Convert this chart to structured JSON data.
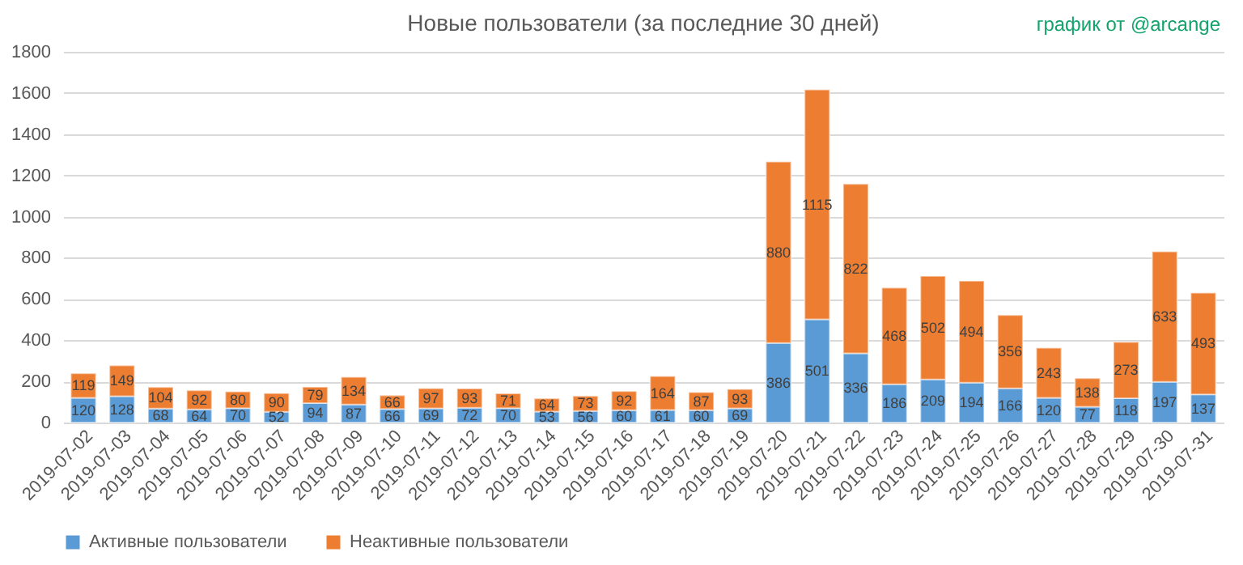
{
  "chart_data": {
    "type": "bar",
    "title": "Новые пользователи (за последние 30 дней)",
    "annotations": [
      "график от @arcange"
    ],
    "categories": [
      "2019-07-02",
      "2019-07-03",
      "2019-07-04",
      "2019-07-05",
      "2019-07-06",
      "2019-07-07",
      "2019-07-08",
      "2019-07-09",
      "2019-07-10",
      "2019-07-11",
      "2019-07-12",
      "2019-07-13",
      "2019-07-14",
      "2019-07-15",
      "2019-07-16",
      "2019-07-17",
      "2019-07-18",
      "2019-07-19",
      "2019-07-20",
      "2019-07-21",
      "2019-07-22",
      "2019-07-23",
      "2019-07-24",
      "2019-07-25",
      "2019-07-26",
      "2019-07-27",
      "2019-07-28",
      "2019-07-29",
      "2019-07-30",
      "2019-07-31"
    ],
    "series": [
      {
        "name": "Активные пользователи",
        "color": "#5b9bd5",
        "values": [
          120,
          128,
          68,
          64,
          70,
          52,
          94,
          87,
          66,
          69,
          72,
          70,
          53,
          56,
          60,
          61,
          60,
          69,
          386,
          501,
          336,
          186,
          209,
          194,
          166,
          120,
          77,
          118,
          197,
          137
        ]
      },
      {
        "name": "Неактивные пользователи",
        "color": "#ed7d31",
        "values": [
          119,
          149,
          104,
          92,
          80,
          90,
          79,
          134,
          66,
          97,
          93,
          71,
          64,
          73,
          92,
          164,
          87,
          93,
          880,
          1115,
          822,
          468,
          502,
          494,
          356,
          243,
          138,
          273,
          633,
          493
        ]
      }
    ],
    "stacked": true,
    "data_labels": true,
    "ylim": [
      0,
      1800
    ],
    "yticks": [
      0,
      200,
      400,
      600,
      800,
      1000,
      1200,
      1400,
      1600,
      1800
    ],
    "grid": "y",
    "legend": "bottom"
  }
}
